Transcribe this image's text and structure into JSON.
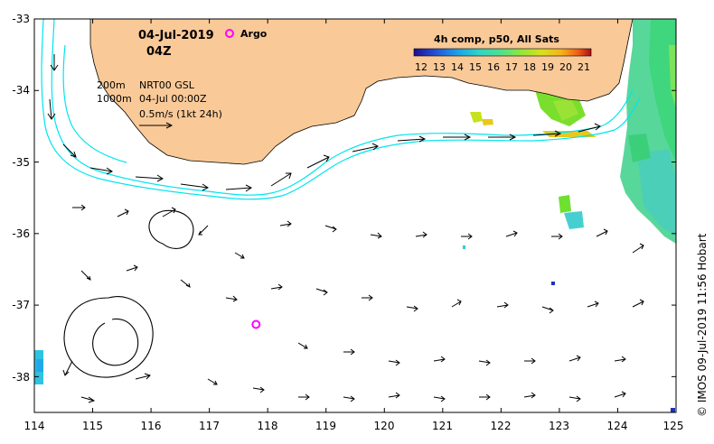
{
  "map": {
    "date": "04-Jul-2019",
    "time": "04Z",
    "argo_label": "Argo",
    "legend_200m": "200m",
    "legend_1000m": "1000m",
    "product": "NRT00 GSL",
    "product_time": "04-Jul 00:00Z",
    "velocity_scale": "0.5m/s (1kt 24h)",
    "credit": "© IMOS 09-Jul-2019 11:56 Hobart",
    "colorbar_title": "4h comp, p50, All Sats",
    "colorbar_ticks": [
      "12",
      "13",
      "14",
      "15",
      "16",
      "17",
      "18",
      "19",
      "20",
      "21"
    ],
    "colors": {
      "land": "#f9c998",
      "contour": "#00e5ee",
      "argo": "#ff00ff",
      "arrow": "#000000",
      "colorbar": [
        "#1e0d8f",
        "#2550d9",
        "#1fa3e8",
        "#2ed6c7",
        "#54e08a",
        "#8ee63c",
        "#d7e11c",
        "#f6b41a",
        "#ee5a16",
        "#a9101a"
      ]
    },
    "axes": {
      "lon_ticks": [
        "114",
        "115",
        "116",
        "117",
        "118",
        "119",
        "120",
        "121",
        "122",
        "123",
        "124",
        "125"
      ],
      "lat_ticks": [
        "-33",
        "-34",
        "-35",
        "-36",
        "-37",
        "-38"
      ],
      "lon_range": [
        114,
        125
      ],
      "lat_range": [
        -38.5,
        -33
      ]
    },
    "argo_float": {
      "lon": 117.8,
      "lat": -37.27
    }
  }
}
